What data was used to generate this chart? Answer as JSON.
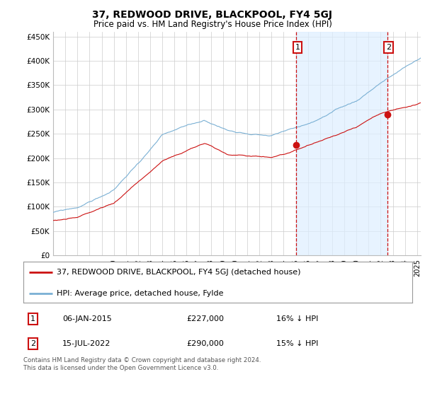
{
  "title": "37, REDWOOD DRIVE, BLACKPOOL, FY4 5GJ",
  "subtitle": "Price paid vs. HM Land Registry's House Price Index (HPI)",
  "ylim": [
    0,
    460000
  ],
  "yticks": [
    0,
    50000,
    100000,
    150000,
    200000,
    250000,
    300000,
    350000,
    400000,
    450000
  ],
  "ytick_labels": [
    "£0",
    "£50K",
    "£100K",
    "£150K",
    "£200K",
    "£250K",
    "£300K",
    "£350K",
    "£400K",
    "£450K"
  ],
  "hpi_color": "#7ab0d4",
  "price_color": "#cc1111",
  "shade_color": "#ddeeff",
  "vline_color": "#cc1111",
  "background_color": "#ffffff",
  "grid_color": "#cccccc",
  "legend_label_price": "37, REDWOOD DRIVE, BLACKPOOL, FY4 5GJ (detached house)",
  "legend_label_hpi": "HPI: Average price, detached house, Fylde",
  "annotation_1_label": "1",
  "annotation_1_date": "06-JAN-2015",
  "annotation_1_price": "£227,000",
  "annotation_1_hpi": "16% ↓ HPI",
  "annotation_2_label": "2",
  "annotation_2_date": "15-JUL-2022",
  "annotation_2_price": "£290,000",
  "annotation_2_hpi": "15% ↓ HPI",
  "footnote": "Contains HM Land Registry data © Crown copyright and database right 2024.\nThis data is licensed under the Open Government Licence v3.0.",
  "sale_1_x": 2015.04,
  "sale_1_y": 227000,
  "sale_2_x": 2022.54,
  "sale_2_y": 290000,
  "xmin": 1995.0,
  "xmax": 2025.3
}
